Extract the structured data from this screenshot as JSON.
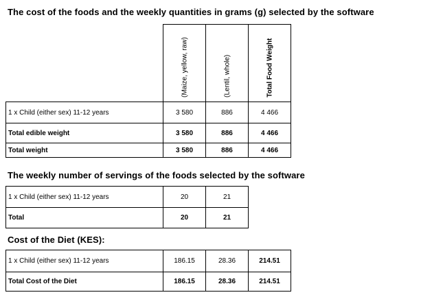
{
  "section1": {
    "title": "The cost of the foods and the weekly quantities in grams (g) selected by the software",
    "headers": [
      "(Maize, yellow, raw)",
      "(Lentil, whole)",
      "Total Food Weight"
    ],
    "rows": [
      {
        "label": "1 x Child (either sex) 11-12 years",
        "values": [
          "3 580",
          "886",
          "4 466"
        ]
      },
      {
        "label": "Total edible weight",
        "values": [
          "3 580",
          "886",
          "4 466"
        ]
      },
      {
        "label": "Total weight",
        "values": [
          "3 580",
          "886",
          "4 466"
        ]
      }
    ]
  },
  "section2": {
    "title": "The weekly number of servings of the foods selected by the software",
    "rows": [
      {
        "label": "1 x Child (either sex) 11-12 years",
        "values": [
          "20",
          "21"
        ]
      },
      {
        "label": "Total",
        "values": [
          "20",
          "21"
        ]
      }
    ]
  },
  "section3": {
    "title": "Cost of the Diet (KES):",
    "rows": [
      {
        "label": "1 x Child (either sex) 11-12 years",
        "values": [
          "186.15",
          "28.36",
          "214.51"
        ]
      },
      {
        "label": "Total Cost of the Diet",
        "values": [
          "186.15",
          "28.36",
          "214.51"
        ]
      }
    ]
  }
}
